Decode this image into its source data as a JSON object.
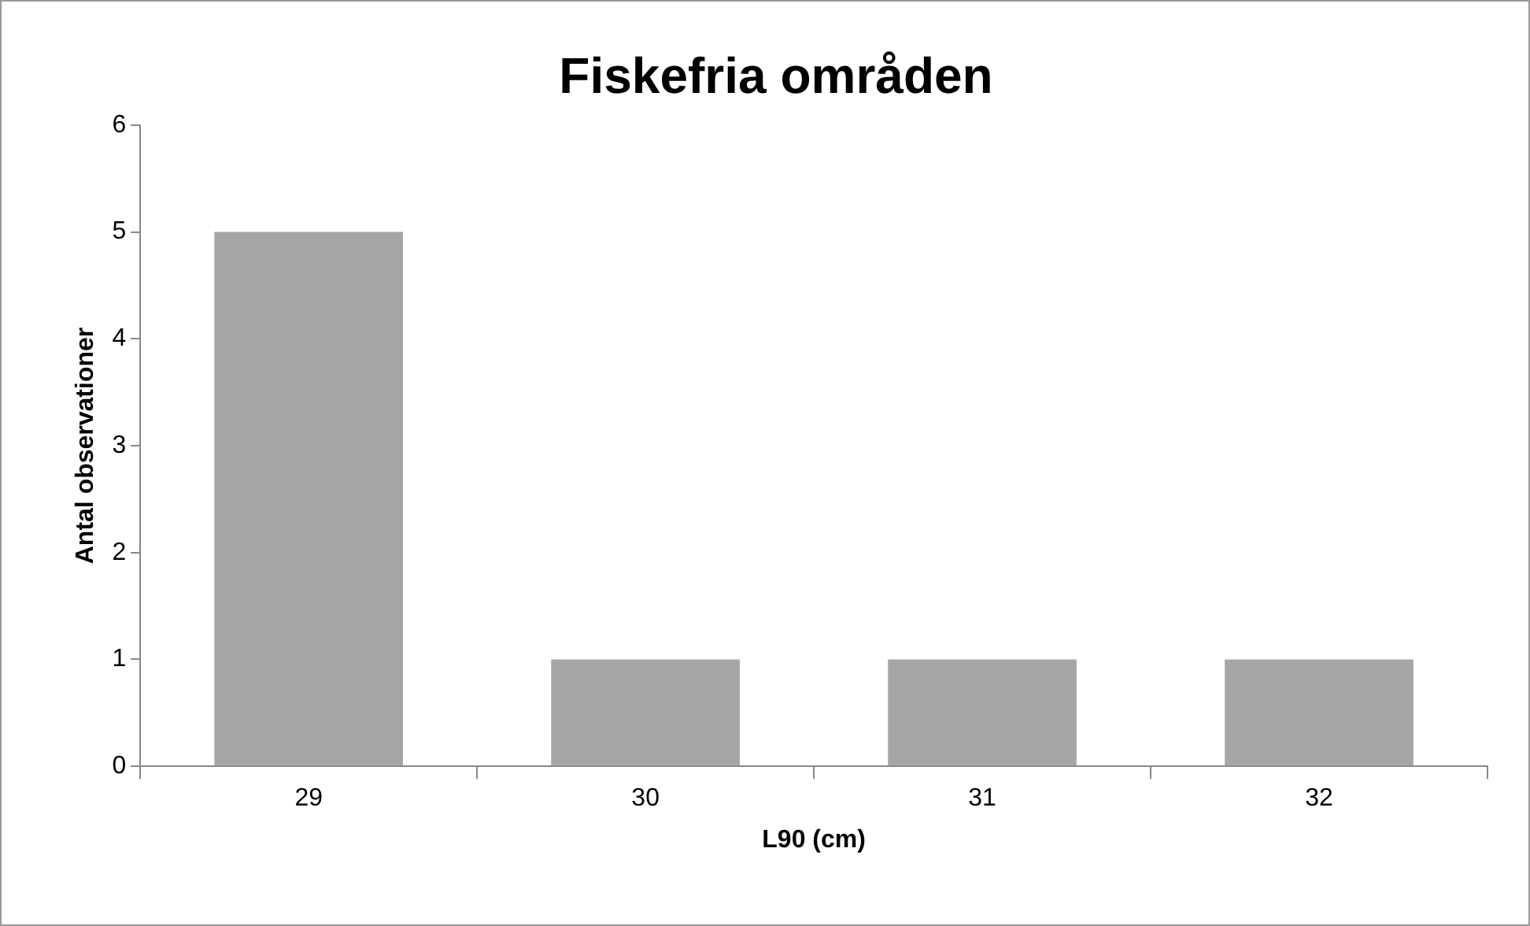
{
  "chart_data": {
    "type": "bar",
    "title": "Fiskefria områden",
    "xlabel": "L90 (cm)",
    "ylabel": "Antal observationer",
    "categories": [
      "29",
      "30",
      "31",
      "32"
    ],
    "values": [
      5,
      1,
      1,
      1
    ],
    "color": "#a6a6a6",
    "ylim": [
      0,
      6
    ],
    "yticks": [
      0,
      1,
      2,
      3,
      4,
      5,
      6
    ]
  }
}
